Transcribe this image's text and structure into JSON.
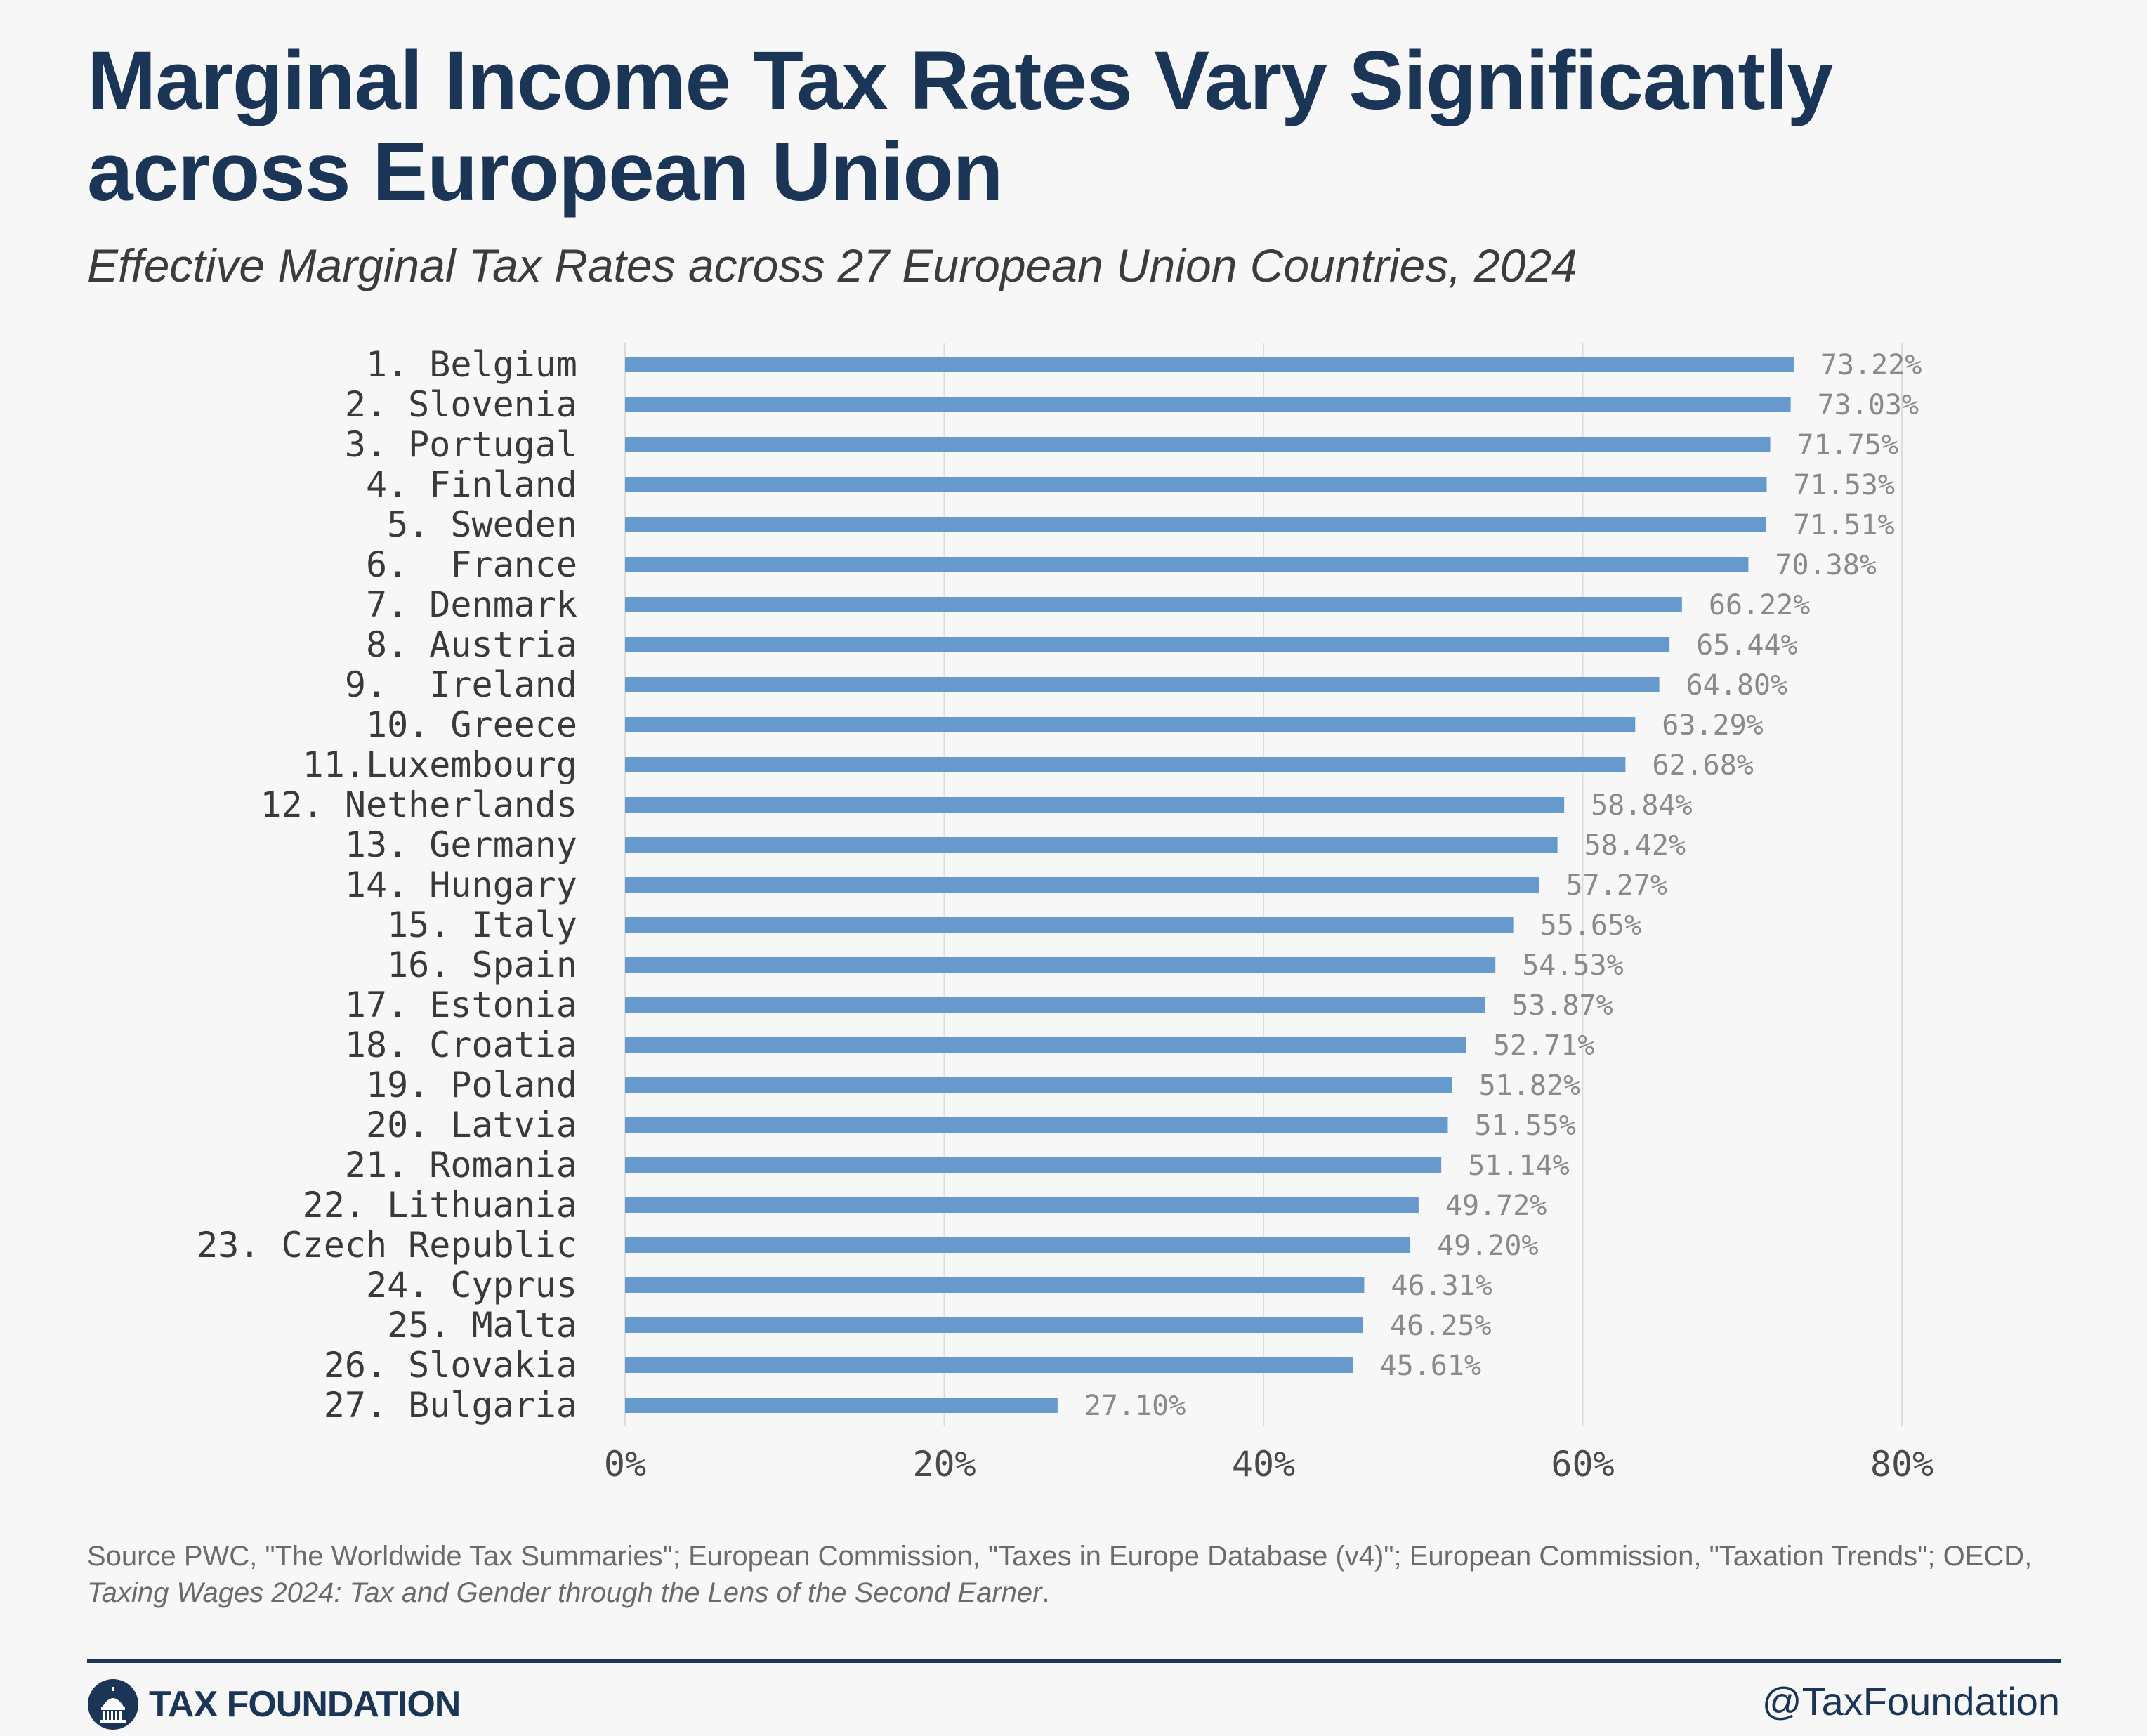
{
  "header": {
    "title": "Marginal Income Tax Rates Vary Significantly across European Union",
    "subtitle": "Effective Marginal Tax Rates across 27 European Union Countries, 2024"
  },
  "chart_data": {
    "type": "bar",
    "orientation": "horizontal",
    "title": "Marginal Income Tax Rates Vary Significantly across European Union",
    "subtitle": "Effective Marginal Tax Rates across 27 European Union Countries, 2024",
    "xlabel": "",
    "ylabel": "",
    "xlim": [
      0,
      80
    ],
    "xticks": [
      0,
      20,
      40,
      60,
      80
    ],
    "xtick_labels": [
      "0%",
      "20%",
      "40%",
      "60%",
      "80%"
    ],
    "grid": true,
    "bar_color": "#6699cc",
    "categories": [
      "1. Belgium",
      "2. Slovenia",
      "3. Portugal",
      "4. Finland",
      "5. Sweden",
      "6.  France",
      "7. Denmark",
      "8. Austria",
      "9.  Ireland",
      "10. Greece",
      "11.Luxembourg",
      "12. Netherlands",
      "13. Germany",
      "14. Hungary",
      "15. Italy",
      "16. Spain",
      "17. Estonia",
      "18. Croatia",
      "19. Poland",
      "20. Latvia",
      "21. Romania",
      "22. Lithuania",
      "23. Czech Republic",
      "24. Cyprus",
      "25. Malta",
      "26. Slovakia",
      "27. Bulgaria"
    ],
    "values": [
      73.22,
      73.03,
      71.75,
      71.53,
      71.51,
      70.38,
      66.22,
      65.44,
      64.8,
      63.29,
      62.68,
      58.84,
      58.42,
      57.27,
      55.65,
      54.53,
      53.87,
      52.71,
      51.82,
      51.55,
      51.14,
      49.72,
      49.2,
      46.31,
      46.25,
      45.61,
      27.1
    ],
    "data_labels": [
      "73.22%",
      "73.03%",
      "71.75%",
      "71.53%",
      "71.51%",
      "70.38%",
      "66.22%",
      "65.44%",
      "64.80%",
      "63.29%",
      "62.68%",
      "58.84%",
      "58.42%",
      "57.27%",
      "55.65%",
      "54.53%",
      "53.87%",
      "52.71%",
      "51.82%",
      "51.55%",
      "51.14%",
      "49.72%",
      "49.20%",
      "46.31%",
      "46.25%",
      "45.61%",
      "27.10%"
    ]
  },
  "footer": {
    "source_text": "Source PWC, \"The Worldwide Tax Summaries\"; European Commission, \"Taxes in Europe Database (v4)\"; European Commission, \"Taxation Trends\"; OECD, ",
    "source_italic": "Taxing Wages 2024: Tax and Gender through the Lens of the Second Earner",
    "source_end": ".",
    "logo_text": "TAX FOUNDATION",
    "handle": "@TaxFoundation"
  },
  "colors": {
    "title": "#1b3556",
    "bar": "#6699cc",
    "value_label": "#8a8a8a",
    "category_label": "#3a3a3a",
    "grid": "#dcdcdc"
  },
  "icons": [
    "capitol-dome-icon"
  ]
}
